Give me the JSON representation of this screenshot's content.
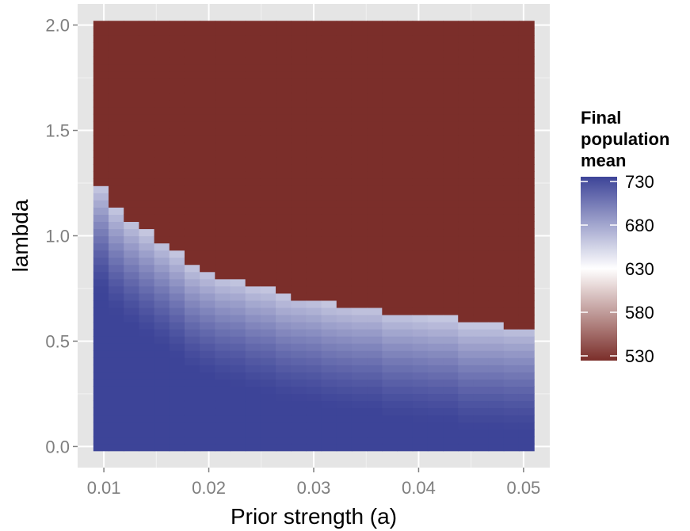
{
  "chart_data": {
    "type": "heatmap",
    "title": "",
    "xlabel": "Prior strength (a)",
    "ylabel": "lambda",
    "xlim": [
      0.0075,
      0.0525
    ],
    "ylim": [
      -0.1,
      2.1
    ],
    "x_range": [
      0.009,
      0.051
    ],
    "y_range": [
      -0.02,
      2.02
    ],
    "x_ticks": [
      0.01,
      0.02,
      0.03,
      0.04,
      0.05
    ],
    "x_tick_labels": [
      "0.01",
      "0.02",
      "0.03",
      "0.04",
      "0.05"
    ],
    "y_ticks": [
      0.0,
      0.5,
      1.0,
      1.5,
      2.0
    ],
    "y_tick_labels": [
      "0.0",
      "0.5",
      "1.0",
      "1.5",
      "2.0"
    ],
    "grid": true,
    "legend": {
      "title_lines": [
        "Final",
        "population",
        "mean"
      ],
      "min": 530,
      "max": 730,
      "breaks": [
        730,
        680,
        630,
        580,
        530
      ],
      "break_labels": [
        "730",
        "680",
        "630",
        "580",
        "530"
      ],
      "low_color": "#7b2e2a",
      "mid_color": "#ffffff",
      "high_color": "#3d4498",
      "placement": "right"
    },
    "boundary": {
      "x": [
        0.009,
        0.0105,
        0.012,
        0.0135,
        0.015,
        0.0165,
        0.018,
        0.0195,
        0.021,
        0.0225,
        0.024,
        0.0255,
        0.027,
        0.0285,
        0.03,
        0.0315,
        0.033,
        0.0345,
        0.036,
        0.0375,
        0.039,
        0.0405,
        0.042,
        0.0435,
        0.045,
        0.0465,
        0.048,
        0.0495,
        0.051
      ],
      "lambda": [
        1.23,
        1.13,
        1.07,
        1.02,
        0.97,
        0.92,
        0.86,
        0.83,
        0.8,
        0.79,
        0.76,
        0.75,
        0.72,
        0.71,
        0.7,
        0.68,
        0.67,
        0.66,
        0.66,
        0.63,
        0.63,
        0.62,
        0.61,
        0.61,
        0.58,
        0.58,
        0.58,
        0.57,
        0.57
      ]
    },
    "above_boundary_value": 530,
    "below_boundary_value": 730,
    "transition_width_lambda": 0.5
  }
}
